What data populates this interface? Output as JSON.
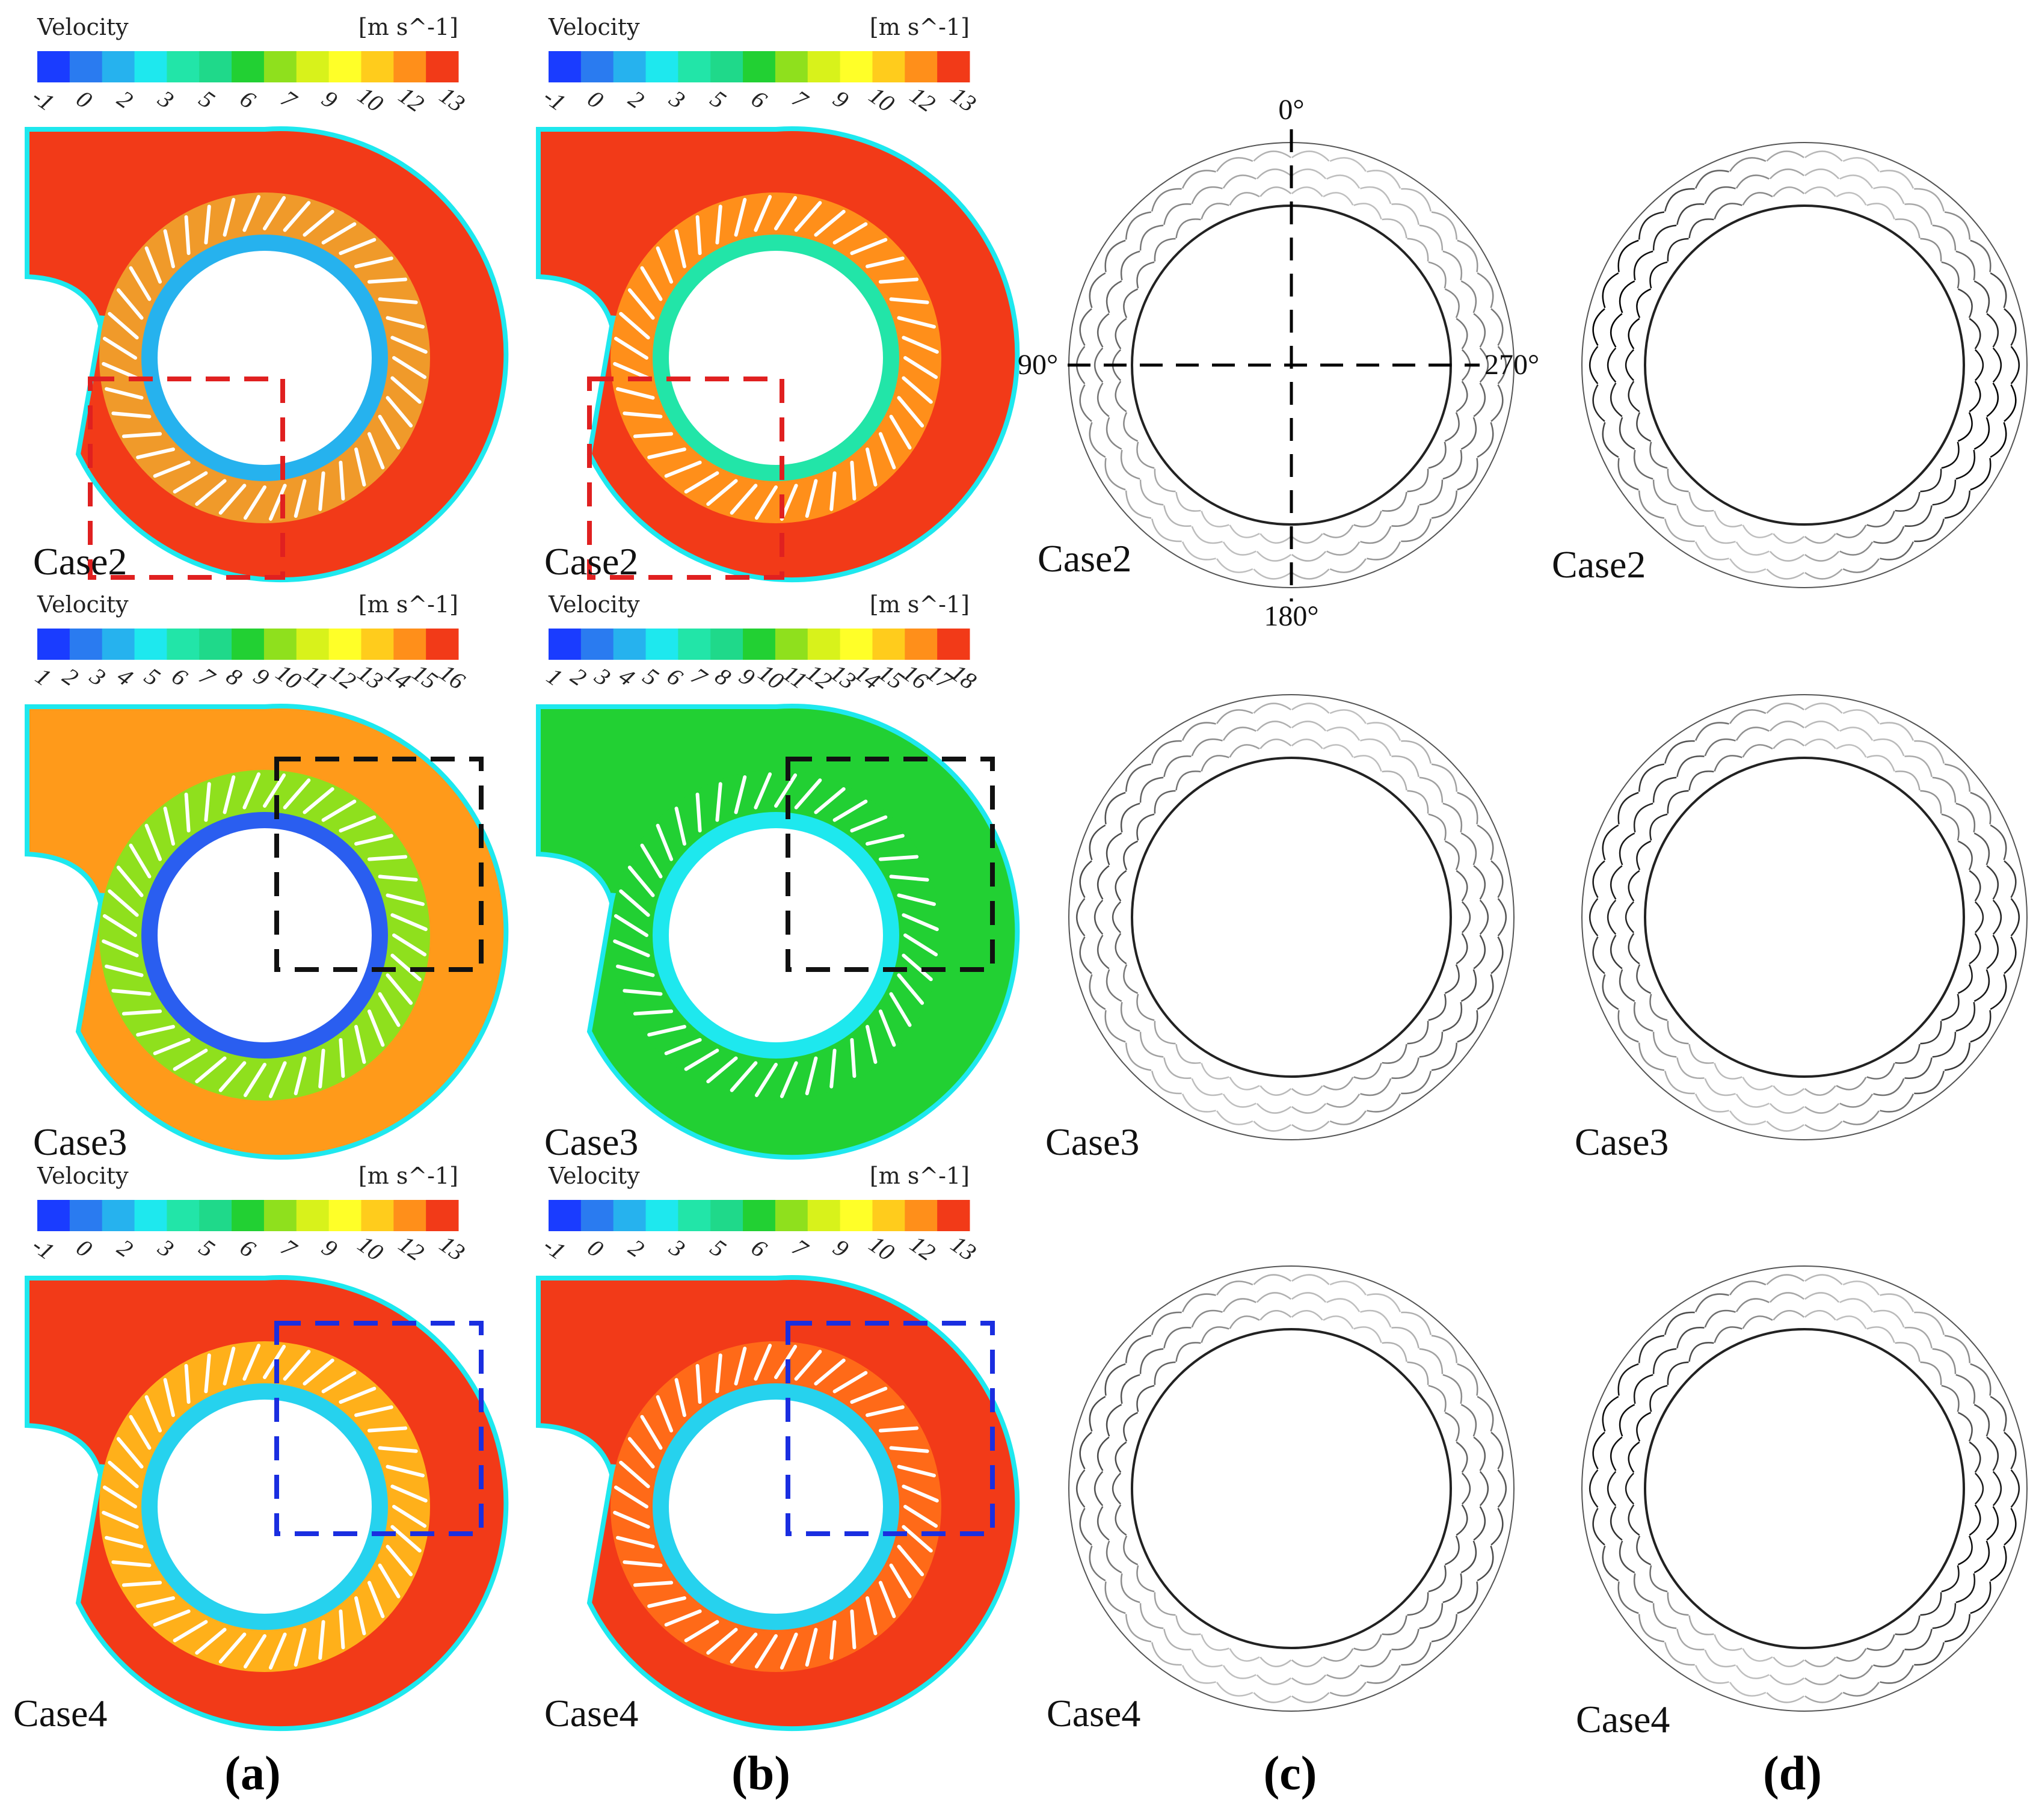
{
  "colormap": [
    "#1a3cff",
    "#2a7bf0",
    "#26b2ee",
    "#1ee8ee",
    "#22e5a8",
    "#1fd98a",
    "#22d033",
    "#8fe01d",
    "#d8f21b",
    "#ffff28",
    "#ffcc1c",
    "#ff8f1a",
    "#f23a18"
  ],
  "legend_title": "Velocity",
  "legend_unit": "[m s^-1]",
  "legends": [
    {
      "id": "a1",
      "ticks": [
        "-1",
        "0",
        "2",
        "3",
        "5",
        "6",
        "7",
        "9",
        "10",
        "12",
        "13"
      ]
    },
    {
      "id": "b1",
      "ticks": [
        "-1",
        "0",
        "2",
        "3",
        "5",
        "6",
        "7",
        "9",
        "10",
        "12",
        "13"
      ]
    },
    {
      "id": "a2",
      "ticks": [
        "1",
        "2",
        "3",
        "4",
        "5",
        "6",
        "7",
        "8",
        "9",
        "10",
        "11",
        "12",
        "13",
        "14",
        "15",
        "16"
      ]
    },
    {
      "id": "b2",
      "ticks": [
        "1",
        "2",
        "3",
        "4",
        "5",
        "6",
        "7",
        "8",
        "9",
        "10",
        "11",
        "12",
        "13",
        "14",
        "15",
        "16",
        "17",
        "18"
      ]
    },
    {
      "id": "a3",
      "ticks": [
        "-1",
        "0",
        "2",
        "3",
        "5",
        "6",
        "7",
        "9",
        "10",
        "12",
        "13"
      ]
    },
    {
      "id": "b3",
      "ticks": [
        "-1",
        "0",
        "2",
        "3",
        "5",
        "6",
        "7",
        "9",
        "10",
        "12",
        "13"
      ]
    }
  ],
  "case_labels": {
    "a1": "Case2",
    "b1": "Case2",
    "c1": "Case2",
    "d1": "Case2",
    "a2": "Case3",
    "b2": "Case3",
    "c2": "Case3",
    "d2": "Case3",
    "a3": "Case4",
    "b3": "Case4",
    "c3": "Case4",
    "d3": "Case4"
  },
  "angles": {
    "top": "0°",
    "left": "90°",
    "right": "270°",
    "bottom": "180°"
  },
  "panel_labels": {
    "a": "(a)",
    "b": "(b)",
    "c": "(c)",
    "d": "(d)"
  },
  "highlight_colors": {
    "case2": "#e02020",
    "case3": "#111111",
    "case4": "#1a2ee0"
  },
  "fields": {
    "a1": {
      "volute": "#f23a18",
      "inner": "#26b2ee",
      "ring": "#f09a2a"
    },
    "b1": {
      "volute": "#f23a18",
      "inner": "#22e5a8",
      "ring": "#ff8f1a"
    },
    "a2": {
      "volute": "#ff9a1a",
      "inner": "#2a5ef0",
      "ring": "#8fe01d"
    },
    "b2": {
      "volute": "#22d033",
      "inner": "#1ee8ee",
      "ring": "#22d033"
    },
    "a3": {
      "volute": "#f23a18",
      "inner": "#26d2ee",
      "ring": "#ffb01a"
    },
    "b3": {
      "volute": "#f23a18",
      "inner": "#26d2ee",
      "ring": "#ff6a18"
    }
  }
}
